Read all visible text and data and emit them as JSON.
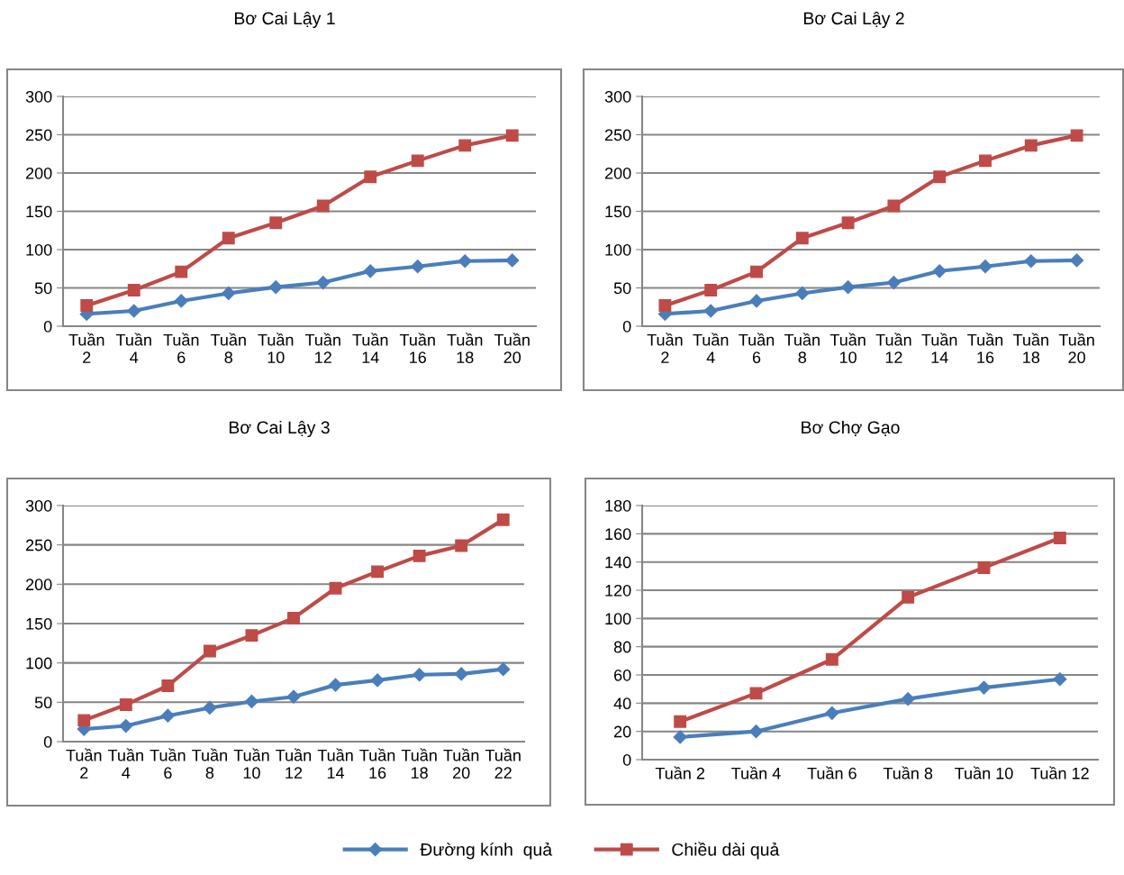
{
  "chart_data": [
    {
      "type": "line",
      "title": "Bơ Cai Lậy 1",
      "categories": [
        "Tuần 2",
        "Tuần 4",
        "Tuần 6",
        "Tuần 8",
        "Tuần 10",
        "Tuần 12",
        "Tuần 14",
        "Tuần 16",
        "Tuần 18",
        "Tuần 20"
      ],
      "ylim": [
        0,
        300
      ],
      "yticks": [
        0,
        50,
        100,
        150,
        200,
        250,
        300
      ],
      "grid": "y",
      "legend": "bottom",
      "line_style": "solid",
      "series": [
        {
          "name": "Đường kính  quả",
          "color": "#4a7ebb",
          "marker": "diamond",
          "values": [
            16,
            20,
            33,
            43,
            51,
            57,
            72,
            78,
            85,
            86
          ]
        },
        {
          "name": "Chiều dài quả",
          "color": "#be4b48",
          "marker": "square",
          "values": [
            27,
            47,
            71,
            115,
            135,
            157,
            195,
            216,
            236,
            249
          ]
        }
      ]
    },
    {
      "type": "line",
      "title": "Bơ Cai Lậy 2",
      "categories": [
        "Tuần 2",
        "Tuần 4",
        "Tuần 6",
        "Tuần 8",
        "Tuần 10",
        "Tuần 12",
        "Tuần 14",
        "Tuần 16",
        "Tuần 18",
        "Tuần 20"
      ],
      "ylim": [
        0,
        300
      ],
      "yticks": [
        0,
        50,
        100,
        150,
        200,
        250,
        300
      ],
      "grid": "y",
      "line_style": "solid",
      "series": [
        {
          "color": "#4a7ebb",
          "marker": "diamond",
          "values": [
            16,
            20,
            33,
            43,
            51,
            57,
            72,
            78,
            85,
            86
          ]
        },
        {
          "color": "#be4b48",
          "marker": "square",
          "values": [
            27,
            47,
            71,
            115,
            135,
            157,
            195,
            216,
            236,
            249
          ]
        }
      ]
    },
    {
      "type": "line",
      "title": "Bơ Cai Lậy 3",
      "categories": [
        "Tuần 2",
        "Tuần 4",
        "Tuần 6",
        "Tuần 8",
        "Tuần 10",
        "Tuần 12",
        "Tuần 14",
        "Tuần 16",
        "Tuần 18",
        "Tuần 20",
        "Tuần 22"
      ],
      "ylim": [
        0,
        300
      ],
      "yticks": [
        0,
        50,
        100,
        150,
        200,
        250,
        300
      ],
      "grid": "y",
      "line_style": "solid",
      "series": [
        {
          "color": "#4a7ebb",
          "marker": "diamond",
          "values": [
            16,
            20,
            33,
            43,
            51,
            57,
            72,
            78,
            85,
            86,
            92
          ]
        },
        {
          "color": "#be4b48",
          "marker": "square",
          "values": [
            27,
            47,
            71,
            115,
            135,
            157,
            195,
            216,
            236,
            249,
            282
          ]
        }
      ]
    },
    {
      "type": "line",
      "title": "Bơ Chợ Gạo",
      "categories": [
        "Tuần 2",
        "Tuần 4",
        "Tuần 6",
        "Tuần 8",
        "Tuần 10",
        "Tuần 12"
      ],
      "ylim": [
        0,
        180
      ],
      "yticks": [
        0,
        20,
        40,
        60,
        80,
        100,
        120,
        140,
        160,
        180
      ],
      "grid": "y",
      "line_style": "solid",
      "series": [
        {
          "color": "#4a7ebb",
          "marker": "diamond",
          "values": [
            16,
            20,
            33,
            43,
            51,
            57
          ]
        },
        {
          "color": "#be4b48",
          "marker": "square",
          "values": [
            27,
            47,
            71,
            115,
            136,
            157
          ]
        }
      ]
    }
  ]
}
